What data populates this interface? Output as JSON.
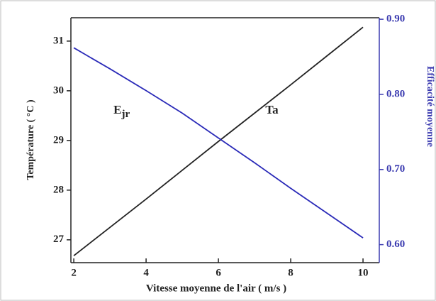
{
  "chart_data": {
    "type": "line",
    "x": [
      2,
      3,
      4,
      5,
      6,
      7,
      8,
      9,
      10
    ],
    "xlim": [
      1.92,
      10.45
    ],
    "xticks": [
      2,
      4,
      6,
      8,
      10
    ],
    "ylim": [
      26.54,
      31.47
    ],
    "yticks": [
      27,
      28,
      29,
      30,
      31
    ],
    "y2lim": [
      0.576,
      0.902
    ],
    "y2ticks": [
      {
        "value": 0.6,
        "label": "0.60"
      },
      {
        "value": 0.7,
        "label": "0.70"
      },
      {
        "value": 0.8,
        "label": "0.80"
      },
      {
        "value": 0.9,
        "label": "0.90"
      }
    ],
    "xlabel": "Vitesse moyenne de l'air ( m/s )",
    "ylabel": "Température ( °C )",
    "y2label": "Efficacité moyenne",
    "y2color": "#3b3bb0",
    "series": [
      {
        "name": "Ta",
        "color": "#222222",
        "axis": "y",
        "values": [
          26.68,
          27.25,
          27.82,
          28.4,
          28.98,
          29.55,
          30.12,
          30.7,
          31.28
        ]
      },
      {
        "name": "Ejr",
        "color": "#2a2ab8",
        "axis": "y2",
        "values": [
          0.862,
          0.834,
          0.805,
          0.775,
          0.742,
          0.709,
          0.675,
          0.642,
          0.609
        ]
      }
    ],
    "annotations": [
      {
        "text": "E",
        "subscript": "jr",
        "x": 3.1,
        "y": 29.6
      },
      {
        "text": "Ta",
        "x": 7.3,
        "y": 29.6
      }
    ]
  }
}
